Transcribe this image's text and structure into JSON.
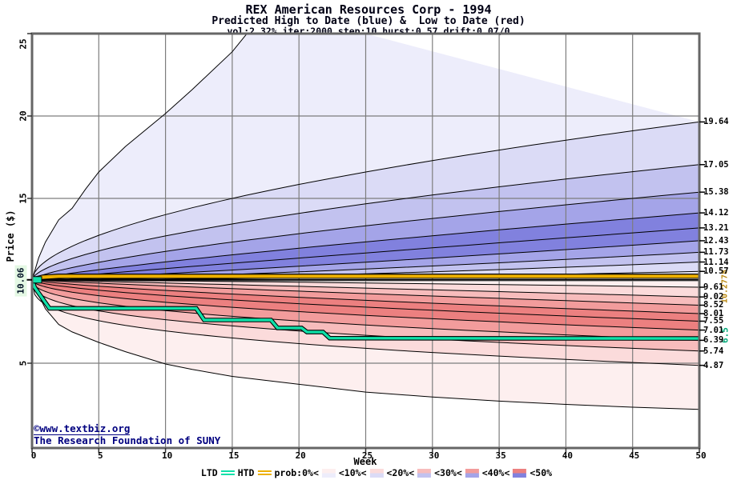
{
  "header": {
    "title": "REX American Resources Corp - 1994",
    "subtitle": "Predicted High to Date (blue) &  Low to Date (red)",
    "params": "vol:2.32% iter:2000 step:10 hurst:0.57 drift:0.07/0"
  },
  "footer": {
    "copyright": "©www.textbiz.org",
    "org": "The Research Foundation of SUNY"
  },
  "legend": {
    "items": [
      {
        "label": "LTD",
        "swatch": "ltd"
      },
      {
        "label": "HTD",
        "swatch": "htd"
      },
      {
        "label": "prob:0%<",
        "swatch": "band0"
      },
      {
        "label": "<10%<",
        "swatch": "band1"
      },
      {
        "label": "<20%<",
        "swatch": "band2"
      },
      {
        "label": "<30%<",
        "swatch": "band3"
      },
      {
        "label": "<40%<",
        "swatch": "band4"
      },
      {
        "label": "<50%",
        "swatch": null
      }
    ]
  },
  "colors": {
    "blue_bands": [
      "#ededfb",
      "#dbdbf6",
      "#c2c2ef",
      "#a4a4e8",
      "#8181de"
    ],
    "red_bands": [
      "#fdefef",
      "#fbdbdb",
      "#f7bcbc",
      "#f29c9c",
      "#ec8080"
    ],
    "grid": "#7d7d7d",
    "frame": "#666666",
    "curve": "#000000",
    "ltd_line": "#0fe0a8",
    "htd_line": "#edb000",
    "htd_label_color": "#b8860b",
    "ltd_label_color": "#00a878",
    "copyright_color": "#000080",
    "start_label_bg": "#e4f8e4"
  },
  "chart_data": {
    "type": "area",
    "title": "REX American Resources Corp - 1994",
    "subtitle": "Predicted High to Date (blue) &  Low to Date (red)",
    "x": {
      "label": "Week",
      "min": 0,
      "max": 50,
      "ticks": [
        0,
        5,
        10,
        15,
        20,
        25,
        30,
        35,
        40,
        45,
        50
      ]
    },
    "y": {
      "label": "Price ($)",
      "min": 0,
      "max": 25,
      "ticks": [
        5,
        15,
        20,
        25
      ],
      "grid_prices": [
        5,
        10,
        15,
        20
      ]
    },
    "start_week": 0,
    "start_price": 10.06,
    "start_label": "10.06",
    "high_envelope_points": [
      [
        0,
        10.06
      ],
      [
        0.5,
        11.4
      ],
      [
        1,
        12.35
      ],
      [
        2,
        13.7
      ],
      [
        3,
        14.4
      ],
      [
        4,
        15.55
      ],
      [
        5,
        16.6
      ],
      [
        7,
        18.15
      ],
      [
        10,
        20.15
      ],
      [
        12,
        21.6
      ],
      [
        15,
        23.9
      ],
      [
        16.5,
        25.4
      ],
      [
        17.5,
        26.6
      ]
    ],
    "high_percentiles": [
      {
        "label": "19.64",
        "end": 19.64,
        "shape_exp": 0.55
      },
      {
        "label": "17.05",
        "end": 17.05,
        "shape_exp": 0.6
      },
      {
        "label": "15.38",
        "end": 15.38,
        "shape_exp": 0.7
      },
      {
        "label": "14.12",
        "end": 14.12,
        "shape_exp": 0.82
      },
      {
        "label": "13.21",
        "end": 13.21,
        "shape_exp": 0.95
      },
      {
        "label": "12.43",
        "end": 12.43,
        "shape_exp": 1.15
      },
      {
        "label": "11.73",
        "end": 11.73,
        "shape_exp": 1.35
      },
      {
        "label": "11.14",
        "end": 11.14,
        "shape_exp": 1.55
      },
      {
        "label": "10.57",
        "end": 10.57,
        "shape_exp": 1.75
      }
    ],
    "low_percentiles": [
      {
        "label": "9.61",
        "end": 9.61,
        "shape_exp": 1.25
      },
      {
        "label": "9.02",
        "end": 9.02,
        "shape_exp": 1.05
      },
      {
        "label": "8.52",
        "end": 8.52,
        "shape_exp": 0.88
      },
      {
        "label": "8.01",
        "end": 8.01,
        "shape_exp": 0.72
      },
      {
        "label": "7.55",
        "end": 7.55,
        "shape_exp": 0.6
      },
      {
        "label": "7.01",
        "end": 7.01,
        "shape_exp": 0.5
      },
      {
        "label": "6.39",
        "end": 6.39,
        "shape_exp": 0.42
      },
      {
        "label": "5.74",
        "end": 5.74,
        "shape_exp": 0.36
      },
      {
        "label": "4.87",
        "end": 4.87,
        "shape_exp": 0.32
      }
    ],
    "low_envelope_points": [
      [
        0,
        10.06
      ],
      [
        0.4,
        9.3
      ],
      [
        1,
        8.3
      ],
      [
        2,
        7.35
      ],
      [
        3,
        6.9
      ],
      [
        5,
        6.26
      ],
      [
        7,
        5.7
      ],
      [
        10,
        4.95
      ],
      [
        12,
        4.62
      ],
      [
        15,
        4.2
      ],
      [
        20,
        3.72
      ],
      [
        25,
        3.25
      ],
      [
        30,
        2.95
      ],
      [
        35,
        2.7
      ],
      [
        40,
        2.5
      ],
      [
        45,
        2.33
      ],
      [
        50,
        2.2
      ]
    ],
    "htd": {
      "name": "HTD",
      "final_label": "10.2778",
      "final_value": 10.2778,
      "points": [
        [
          0,
          10.06
        ],
        [
          0.8,
          10.22
        ],
        [
          2,
          10.2778
        ],
        [
          50,
          10.2778
        ]
      ]
    },
    "ltd": {
      "name": "LTD",
      "final_label": "6.5",
      "final_value": 6.5,
      "points": [
        [
          0,
          10.06
        ],
        [
          0.2,
          9.6
        ],
        [
          1.3,
          8.33
        ],
        [
          12.3,
          8.33
        ],
        [
          12.9,
          7.62
        ],
        [
          17.9,
          7.62
        ],
        [
          18.4,
          7.14
        ],
        [
          20.2,
          7.14
        ],
        [
          20.6,
          6.89
        ],
        [
          21.8,
          6.89
        ],
        [
          22.3,
          6.52
        ],
        [
          35,
          6.51
        ],
        [
          50,
          6.5
        ]
      ]
    },
    "band_color_order": [
      0,
      1,
      2,
      3,
      4,
      4,
      3,
      2,
      1,
      0
    ]
  }
}
